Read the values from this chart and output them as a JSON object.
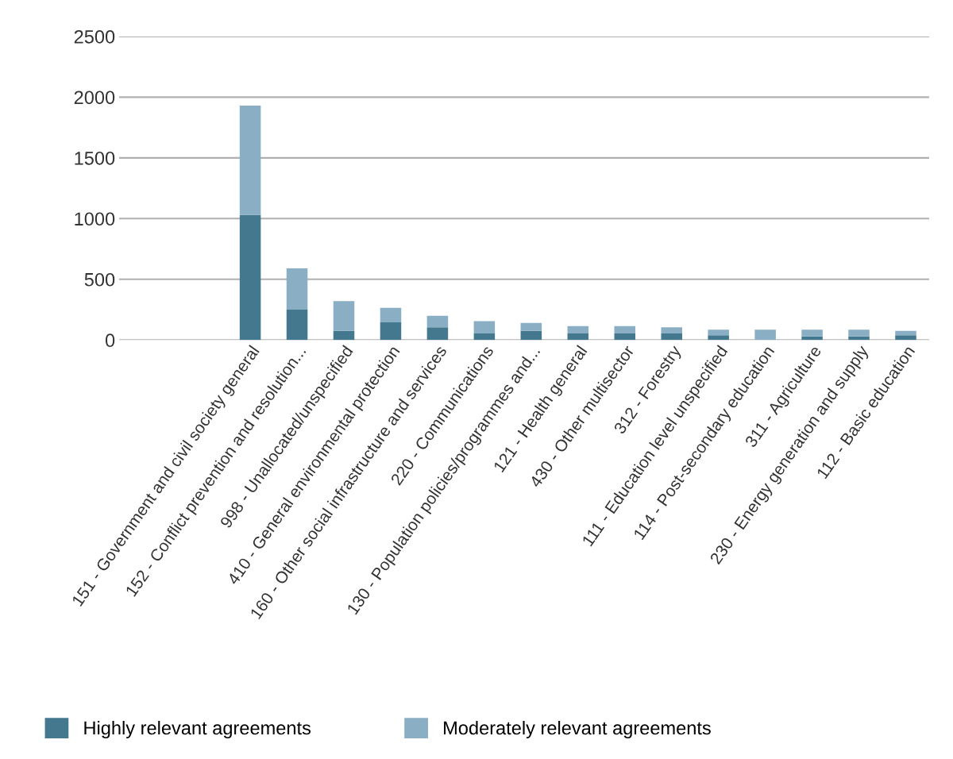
{
  "chart_data": {
    "type": "bar",
    "stacked": true,
    "categories": [
      null,
      null,
      "151 - Government and civil society general",
      "152 - Conflict prevention and resolution...",
      "998 - Unallocated/unspecified",
      "410 - General environmental protection",
      "160 - Other social infrastructure and services",
      "220 - Communications",
      "130 - Population policies/programmes and...",
      "121 - Health general",
      "430 - Other multisector",
      "312 - Forestry",
      "111 - Education level unspecified",
      "114 - Post-secondary education",
      "311 - Agriculture",
      "230 - Energy generation and supply",
      "112 - Basic education"
    ],
    "series": [
      {
        "name": "Highly relevant agreements",
        "color": "#44788f",
        "values": [
          null,
          null,
          1030,
          250,
          75,
          145,
          105,
          55,
          75,
          55,
          55,
          55,
          40,
          0,
          30,
          30,
          40
        ]
      },
      {
        "name": "Moderately relevant agreements",
        "color": "#8aaec4",
        "values": [
          null,
          null,
          900,
          340,
          245,
          120,
          95,
          100,
          65,
          60,
          60,
          50,
          45,
          85,
          55,
          55,
          35
        ]
      }
    ],
    "ylim": [
      0,
      2500
    ],
    "yticks": [
      0,
      500,
      1000,
      1500,
      2000,
      2500
    ],
    "grid": "y",
    "legend": "bottom"
  }
}
